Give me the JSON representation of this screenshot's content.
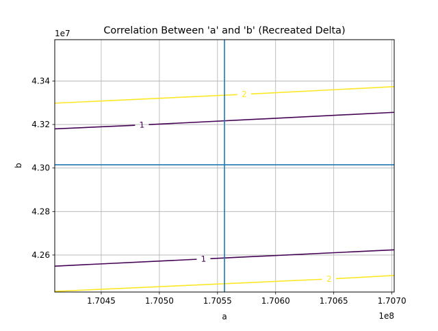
{
  "chart_data": {
    "type": "contour",
    "title": "Correlation Between 'a' and 'b' (Recreated Delta)",
    "xlabel": "a",
    "ylabel": "b",
    "x_offset_label": "1e8",
    "y_offset_label": "1e7",
    "xlim": [
      1.7041,
      1.70702
    ],
    "ylim": [
      4.243,
      4.359
    ],
    "x_ticks": [
      1.7045,
      1.705,
      1.7055,
      1.706,
      1.7065,
      1.707
    ],
    "x_tick_labels": [
      "1.7045",
      "1.7050",
      "1.7055",
      "1.7060",
      "1.7065",
      "1.7070"
    ],
    "y_ticks": [
      4.26,
      4.28,
      4.3,
      4.32,
      4.34
    ],
    "y_tick_labels": [
      "4.26",
      "4.28",
      "4.30",
      "4.32",
      "4.34"
    ],
    "grid": true,
    "crosshair": {
      "x": 1.70556,
      "y": 4.3015,
      "color": "#1f77b4"
    },
    "series": [
      {
        "level": "1",
        "color": "#440154",
        "x": [
          1.7041,
          1.70702
        ],
        "y": [
          4.318,
          4.3256
        ],
        "label_x": 1.70485,
        "label_y": 4.3198
      },
      {
        "level": "2",
        "color": "#fde725",
        "x": [
          1.7041,
          1.70702
        ],
        "y": [
          4.3298,
          4.3374
        ],
        "label_x": 1.70573,
        "label_y": 4.3339
      },
      {
        "level": "1",
        "color": "#440154",
        "x": [
          1.7041,
          1.70702
        ],
        "y": [
          4.2549,
          4.2624
        ],
        "label_x": 1.70538,
        "label_y": 4.2582
      },
      {
        "level": "2",
        "color": "#fde725",
        "x": [
          1.7041,
          1.70702
        ],
        "y": [
          4.2433,
          4.2506
        ],
        "label_x": 1.70646,
        "label_y": 4.249
      }
    ]
  }
}
